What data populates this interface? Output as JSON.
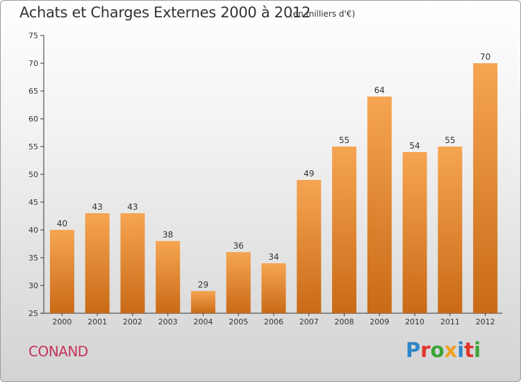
{
  "header": {
    "title": "Achats et Charges Externes 2000 à 2012",
    "unit": "(en milliers d'€)"
  },
  "footer": {
    "commune": "CONAND",
    "logo_letters": [
      {
        "char": "P",
        "color": "#2f86c8"
      },
      {
        "char": "r",
        "color": "#e0342a"
      },
      {
        "char": "o",
        "color": "#3aa535"
      },
      {
        "char": "x",
        "color": "#f0a020"
      },
      {
        "char": "i",
        "color": "#2f86c8"
      },
      {
        "char": "t",
        "color": "#e0342a"
      },
      {
        "char": "i",
        "color": "#3aa535"
      }
    ]
  },
  "colors": {
    "bar_top": "#f6a552",
    "bar_bottom": "#c96a16",
    "axis": "#333333",
    "grid": "#cccccc"
  },
  "chart_data": {
    "type": "bar",
    "title": "Achats et Charges Externes 2000 à 2012",
    "subtitle": "(en milliers d'€)",
    "xlabel": "",
    "ylabel": "",
    "categories": [
      "2000",
      "2001",
      "2002",
      "2003",
      "2004",
      "2005",
      "2006",
      "2007",
      "2008",
      "2009",
      "2010",
      "2011",
      "2012"
    ],
    "values": [
      40,
      43,
      43,
      38,
      29,
      36,
      34,
      49,
      55,
      64,
      54,
      55,
      70
    ],
    "ylim": [
      25,
      75
    ],
    "yticks": [
      25,
      30,
      35,
      40,
      45,
      50,
      55,
      60,
      65,
      70,
      75
    ],
    "grid": false,
    "data_labels": true
  }
}
